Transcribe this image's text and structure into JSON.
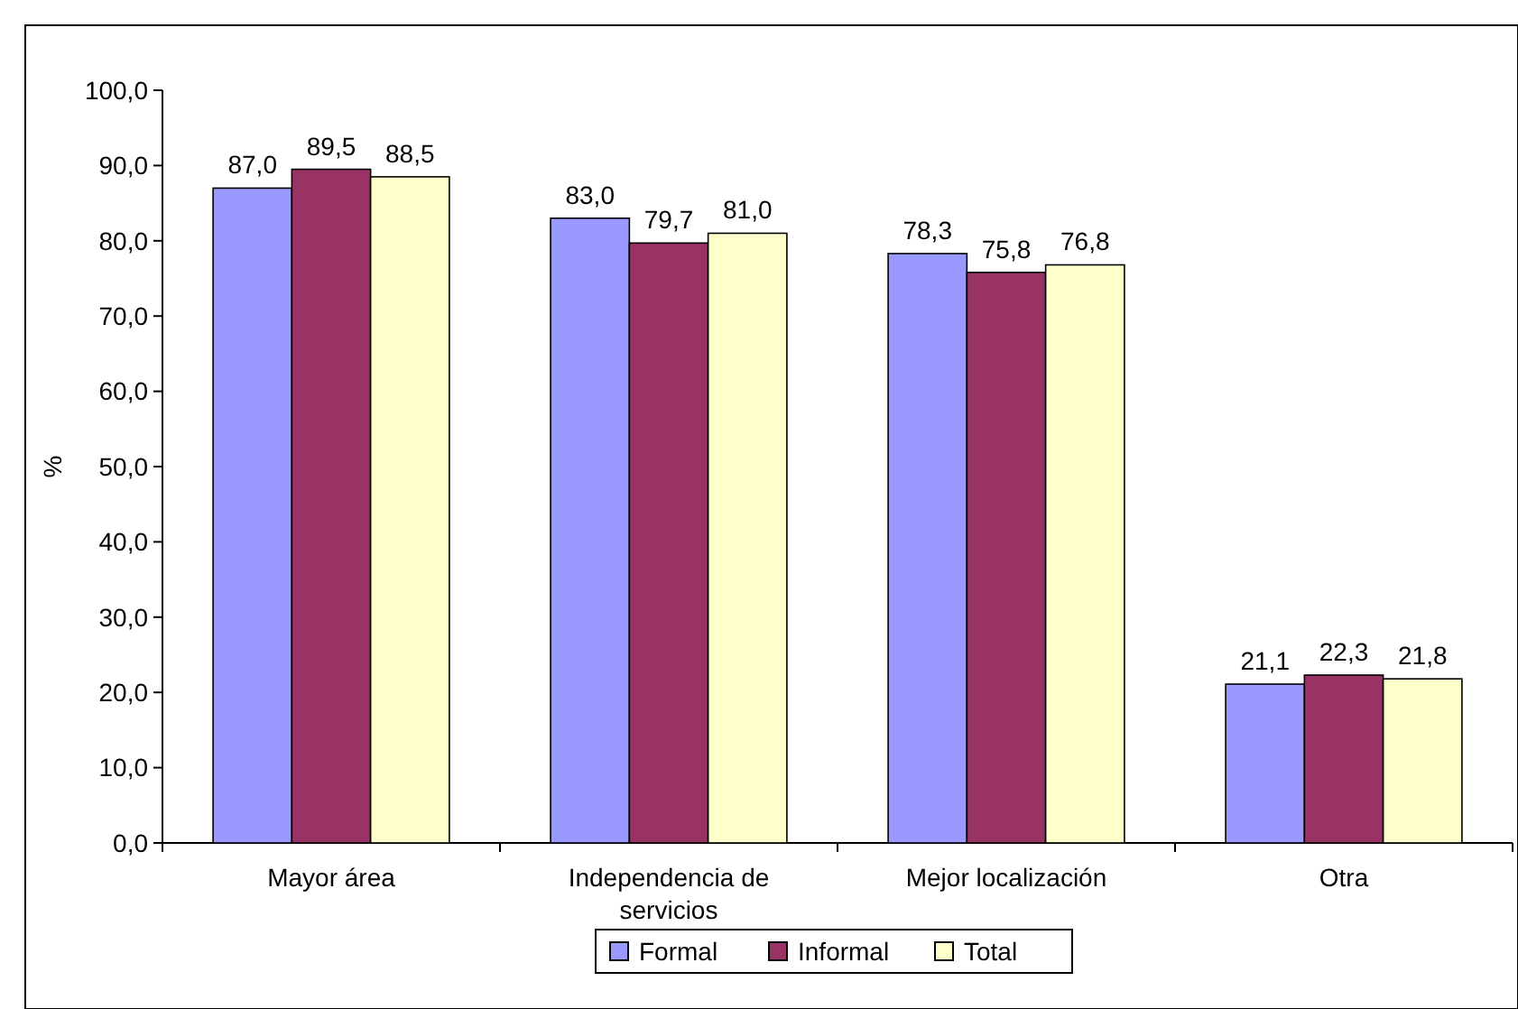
{
  "chart_data": {
    "type": "bar",
    "ylabel": "%",
    "categories": [
      "Mayor área",
      "Independencia de servicios",
      "Mejor localización",
      "Otra"
    ],
    "series": [
      {
        "name": "Formal",
        "color": "#9999ff",
        "values": [
          87.0,
          83.0,
          78.3,
          21.1
        ],
        "value_labels": [
          "87,0",
          "83,0",
          "78,3",
          "21,1"
        ]
      },
      {
        "name": "Informal",
        "color": "#993366",
        "values": [
          89.5,
          79.7,
          75.8,
          22.3
        ],
        "value_labels": [
          "89,5",
          "79,7",
          "75,8",
          "22,3"
        ]
      },
      {
        "name": "Total",
        "color": "#ffffcc",
        "values": [
          88.5,
          81.0,
          76.8,
          21.8
        ],
        "value_labels": [
          "88,5",
          "81,0",
          "76,8",
          "21,8"
        ]
      }
    ],
    "ylim": [
      0,
      100
    ],
    "yticks": [
      {
        "value": 0,
        "label": "0,0"
      },
      {
        "value": 10,
        "label": "10,0"
      },
      {
        "value": 20,
        "label": "20,0"
      },
      {
        "value": 30,
        "label": "30,0"
      },
      {
        "value": 40,
        "label": "40,0"
      },
      {
        "value": 50,
        "label": "50,0"
      },
      {
        "value": 60,
        "label": "60,0"
      },
      {
        "value": 70,
        "label": "70,0"
      },
      {
        "value": 80,
        "label": "80,0"
      },
      {
        "value": 90,
        "label": "90,0"
      },
      {
        "value": 100,
        "label": "100,0"
      }
    ],
    "grid": false,
    "legend": "bottom"
  }
}
